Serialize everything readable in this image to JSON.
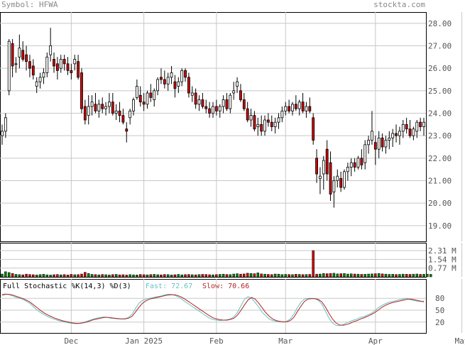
{
  "header": {
    "symbol": "Symbol: HFWA",
    "brand": "stockta.com"
  },
  "indicator": {
    "title": "Full Stochastic %K(14,3) %D(3)",
    "fast_label": "Fast: 72.67",
    "slow_label": "Slow: 70.66"
  },
  "colors": {
    "up": "#ffffff",
    "down": "#cc0000",
    "volume_up": "#008000",
    "volume_down": "#cc0000",
    "fast_line": "#66c2c2",
    "slow_line": "#b22222",
    "grid": "#c8c8c8",
    "label": "#555555",
    "fast_text": "#66c2c2",
    "slow_text": "#b22222"
  },
  "chart_data": [
    {
      "type": "candlestick",
      "title": "",
      "y_ticks": [
        "19.00",
        "20.00",
        "21.00",
        "22.00",
        "23.00",
        "24.00",
        "25.00",
        "26.00",
        "27.00",
        "28.00"
      ],
      "ylim": [
        18.3,
        28.5
      ],
      "x_ticks": [
        {
          "label": "Dec",
          "index": 20
        },
        {
          "label": "Jan 2025",
          "index": 41
        },
        {
          "label": "Feb",
          "index": 62
        },
        {
          "label": "Mar",
          "index": 82
        },
        {
          "label": "Apr",
          "index": 108
        },
        {
          "label": "May",
          "index": 133
        }
      ],
      "grid": true,
      "candles": [
        [
          23.0,
          23.5,
          22.6,
          23.2
        ],
        [
          23.2,
          24.0,
          22.9,
          23.8
        ],
        [
          25.0,
          27.3,
          24.8,
          27.2
        ],
        [
          27.1,
          27.3,
          25.6,
          26.1
        ],
        [
          26.2,
          26.5,
          25.8,
          26.2
        ],
        [
          26.5,
          27.5,
          26.0,
          26.9
        ],
        [
          26.8,
          27.2,
          26.3,
          26.4
        ],
        [
          26.6,
          27.0,
          25.9,
          26.3
        ],
        [
          26.3,
          26.6,
          25.6,
          26.0
        ],
        [
          26.1,
          26.4,
          25.5,
          25.7
        ],
        [
          25.2,
          25.6,
          24.9,
          25.4
        ],
        [
          25.4,
          25.8,
          25.1,
          25.6
        ],
        [
          25.6,
          26.0,
          25.3,
          25.8
        ],
        [
          25.8,
          26.7,
          25.6,
          26.5
        ],
        [
          26.6,
          27.8,
          26.3,
          27.0
        ],
        [
          26.4,
          26.7,
          25.8,
          26.1
        ],
        [
          26.2,
          26.5,
          25.5,
          25.9
        ],
        [
          26.0,
          26.6,
          25.8,
          26.4
        ],
        [
          26.4,
          26.6,
          25.9,
          26.2
        ],
        [
          26.2,
          26.5,
          25.7,
          25.9
        ],
        [
          25.9,
          26.2,
          25.5,
          25.8
        ],
        [
          26.2,
          26.6,
          25.9,
          26.4
        ],
        [
          26.3,
          26.6,
          25.5,
          25.6
        ],
        [
          25.8,
          26.0,
          24.0,
          24.2
        ],
        [
          24.3,
          24.6,
          23.5,
          23.7
        ],
        [
          23.9,
          24.8,
          23.5,
          24.3
        ],
        [
          24.3,
          24.8,
          23.9,
          24.5
        ],
        [
          24.4,
          24.9,
          24.0,
          24.1
        ],
        [
          24.1,
          24.6,
          23.8,
          24.4
        ],
        [
          24.4,
          24.7,
          24.0,
          24.2
        ],
        [
          24.2,
          24.5,
          23.9,
          24.3
        ],
        [
          24.3,
          24.9,
          24.0,
          24.5
        ],
        [
          24.5,
          24.9,
          23.9,
          24.0
        ],
        [
          24.0,
          24.4,
          23.7,
          24.1
        ],
        [
          24.1,
          24.5,
          23.6,
          23.9
        ],
        [
          23.9,
          24.2,
          23.5,
          23.6
        ],
        [
          23.3,
          23.6,
          22.7,
          23.2
        ],
        [
          23.8,
          24.2,
          23.5,
          24.1
        ],
        [
          24.1,
          24.7,
          23.9,
          24.6
        ],
        [
          24.7,
          25.5,
          24.6,
          25.2
        ],
        [
          24.8,
          25.2,
          24.3,
          24.5
        ],
        [
          24.5,
          24.9,
          24.1,
          24.4
        ],
        [
          24.4,
          25.0,
          24.2,
          24.9
        ],
        [
          24.9,
          25.3,
          24.5,
          24.7
        ],
        [
          24.6,
          25.1,
          24.3,
          25.0
        ],
        [
          25.0,
          25.6,
          24.8,
          25.5
        ],
        [
          25.6,
          26.0,
          25.3,
          25.5
        ],
        [
          25.5,
          25.9,
          25.1,
          25.3
        ],
        [
          25.3,
          25.8,
          25.0,
          25.6
        ],
        [
          25.6,
          26.1,
          25.3,
          25.8
        ],
        [
          25.4,
          25.7,
          24.7,
          25.1
        ],
        [
          25.2,
          25.6,
          24.9,
          25.4
        ],
        [
          25.4,
          26.0,
          25.2,
          25.9
        ],
        [
          25.9,
          26.0,
          25.4,
          25.6
        ],
        [
          25.6,
          25.8,
          24.7,
          24.9
        ],
        [
          24.8,
          25.2,
          24.5,
          24.9
        ],
        [
          24.9,
          25.1,
          24.2,
          24.4
        ],
        [
          24.4,
          24.8,
          24.1,
          24.6
        ],
        [
          24.6,
          24.9,
          24.2,
          24.3
        ],
        [
          24.3,
          24.6,
          24.0,
          24.2
        ],
        [
          24.2,
          24.5,
          23.8,
          24.0
        ],
        [
          24.0,
          24.5,
          23.8,
          24.3
        ],
        [
          24.3,
          24.6,
          23.9,
          24.1
        ],
        [
          24.1,
          24.4,
          23.8,
          24.3
        ],
        [
          24.3,
          24.8,
          24.0,
          24.6
        ],
        [
          24.6,
          24.9,
          24.1,
          24.2
        ],
        [
          24.2,
          24.9,
          24.0,
          24.8
        ],
        [
          24.9,
          25.4,
          24.6,
          25.0
        ],
        [
          25.2,
          25.6,
          24.9,
          25.4
        ],
        [
          25.0,
          25.3,
          24.5,
          24.6
        ],
        [
          24.6,
          24.9,
          24.1,
          24.2
        ],
        [
          24.2,
          24.5,
          23.6,
          23.7
        ],
        [
          23.7,
          24.2,
          23.4,
          23.9
        ],
        [
          23.9,
          24.1,
          23.2,
          23.3
        ],
        [
          23.4,
          23.8,
          23.0,
          23.5
        ],
        [
          23.5,
          23.9,
          23.0,
          23.2
        ],
        [
          23.2,
          23.9,
          23.0,
          23.7
        ],
        [
          23.7,
          24.0,
          23.4,
          23.6
        ],
        [
          23.6,
          23.9,
          23.2,
          23.4
        ],
        [
          23.4,
          23.8,
          23.1,
          23.6
        ],
        [
          23.6,
          24.0,
          23.3,
          23.8
        ],
        [
          23.8,
          24.3,
          23.6,
          24.1
        ],
        [
          24.1,
          24.5,
          23.9,
          24.3
        ],
        [
          24.3,
          24.6,
          24.0,
          24.1
        ],
        [
          24.1,
          24.5,
          23.9,
          24.4
        ],
        [
          24.4,
          24.8,
          24.1,
          24.2
        ],
        [
          24.2,
          24.6,
          23.9,
          24.5
        ],
        [
          24.5,
          24.9,
          24.0,
          24.1
        ],
        [
          24.1,
          24.5,
          23.8,
          24.3
        ],
        [
          24.3,
          24.7,
          24.0,
          24.1
        ],
        [
          23.8,
          24.0,
          22.6,
          22.8
        ],
        [
          22.0,
          22.4,
          20.9,
          21.3
        ],
        [
          21.1,
          21.6,
          20.4,
          21.2
        ],
        [
          21.3,
          22.1,
          20.6,
          21.9
        ],
        [
          22.4,
          22.8,
          21.0,
          21.3
        ],
        [
          21.8,
          22.3,
          20.1,
          20.4
        ],
        [
          20.5,
          21.2,
          19.8,
          21.0
        ],
        [
          21.0,
          21.5,
          20.7,
          21.2
        ],
        [
          21.1,
          21.4,
          20.5,
          20.7
        ],
        [
          20.7,
          21.5,
          20.6,
          21.4
        ],
        [
          21.4,
          21.8,
          21.0,
          21.6
        ],
        [
          21.6,
          22.0,
          21.2,
          21.8
        ],
        [
          21.8,
          22.0,
          21.4,
          21.6
        ],
        [
          21.6,
          22.1,
          21.5,
          22.0
        ],
        [
          22.0,
          22.4,
          21.5,
          21.7
        ],
        [
          21.8,
          22.8,
          21.5,
          22.6
        ],
        [
          22.6,
          23.0,
          22.2,
          22.8
        ],
        [
          22.8,
          24.1,
          22.6,
          23.2
        ],
        [
          22.7,
          23.0,
          21.7,
          22.4
        ],
        [
          22.4,
          23.2,
          22.0,
          22.9
        ],
        [
          22.9,
          23.1,
          22.3,
          22.5
        ],
        [
          22.5,
          23.0,
          22.2,
          22.8
        ],
        [
          22.8,
          23.2,
          22.4,
          22.9
        ],
        [
          22.9,
          23.3,
          22.5,
          23.1
        ],
        [
          23.1,
          23.5,
          22.7,
          23.0
        ],
        [
          23.0,
          23.4,
          22.6,
          23.2
        ],
        [
          23.2,
          23.7,
          22.9,
          23.5
        ],
        [
          23.5,
          23.8,
          23.1,
          23.3
        ],
        [
          23.3,
          23.7,
          22.9,
          23.0
        ],
        [
          23.0,
          23.4,
          22.8,
          23.3
        ],
        [
          23.2,
          23.7,
          22.9,
          23.6
        ],
        [
          23.6,
          23.8,
          23.2,
          23.4
        ],
        [
          23.4,
          23.8,
          23.0,
          23.6
        ]
      ]
    },
    {
      "type": "bar",
      "title": "",
      "y_ticks": [
        "2.31 M",
        "1.54 M",
        "0.77 M"
      ],
      "ylim": [
        0,
        3.0
      ],
      "values": [
        0.25,
        0.45,
        0.38,
        0.3,
        0.22,
        0.2,
        0.18,
        0.24,
        0.21,
        0.19,
        0.17,
        0.2,
        0.23,
        0.18,
        0.16,
        0.19,
        0.21,
        0.18,
        0.2,
        0.17,
        0.22,
        0.19,
        0.2,
        0.25,
        0.4,
        0.3,
        0.22,
        0.2,
        0.18,
        0.21,
        0.19,
        0.17,
        0.2,
        0.22,
        0.18,
        0.19,
        0.16,
        0.2,
        0.18,
        0.17,
        0.21,
        0.19,
        0.18,
        0.2,
        0.22,
        0.19,
        0.18,
        0.21,
        0.2,
        0.17,
        0.19,
        0.22,
        0.18,
        0.2,
        0.21,
        0.19,
        0.18,
        0.2,
        0.22,
        0.21,
        0.19,
        0.18,
        0.2,
        0.22,
        0.24,
        0.21,
        0.2,
        0.25,
        0.28,
        0.24,
        0.26,
        0.32,
        0.3,
        0.28,
        0.35,
        0.26,
        0.24,
        0.22,
        0.2,
        0.25,
        0.24,
        0.2,
        0.22,
        0.21,
        0.2,
        0.23,
        0.22,
        0.2,
        0.21,
        0.22,
        2.31,
        0.24,
        0.25,
        0.3,
        0.28,
        0.3,
        0.32,
        0.26,
        0.28,
        0.3,
        0.25,
        0.27,
        0.25,
        0.24,
        0.22,
        0.23,
        0.25,
        0.26,
        0.28,
        0.3,
        0.26,
        0.24,
        0.22,
        0.23,
        0.21,
        0.22,
        0.24,
        0.23,
        0.22,
        0.24,
        0.25,
        0.22,
        0.23,
        0.24,
        0.22
      ],
      "highlight": [
        {
          "index": 1,
          "value": 0.45
        },
        {
          "index": 24,
          "value": 0.4
        }
      ]
    },
    {
      "type": "line",
      "title": "Full Stochastic %K(14,3) %D(3)",
      "y_ticks": [
        "80",
        "50",
        "20"
      ],
      "ylim": [
        0,
        100
      ],
      "series": [
        {
          "name": "Fast",
          "values": [
            90,
            91,
            89,
            86,
            82,
            80,
            77,
            72,
            66,
            58,
            50,
            44,
            39,
            34,
            30,
            27,
            24,
            22,
            20,
            18,
            17,
            16,
            17,
            19,
            22,
            25,
            28,
            30,
            32,
            33,
            32,
            30,
            29,
            28,
            28,
            29,
            32,
            40,
            55,
            68,
            75,
            78,
            80,
            82,
            84,
            85,
            88,
            90,
            90,
            88,
            84,
            79,
            72,
            66,
            60,
            54,
            48,
            42,
            36,
            30,
            27,
            25,
            24,
            25,
            26,
            28,
            34,
            45,
            62,
            78,
            84,
            80,
            70,
            58,
            45,
            36,
            28,
            24,
            22,
            21,
            20,
            22,
            28,
            40,
            56,
            70,
            78,
            80,
            80,
            79,
            75,
            65,
            48,
            30,
            18,
            12,
            11,
            14,
            18,
            22,
            25,
            28,
            32,
            34,
            38,
            42,
            48,
            56,
            62,
            66,
            70,
            72,
            74,
            76,
            78,
            80,
            77,
            75,
            73,
            72,
            73
          ]
        },
        {
          "name": "Slow",
          "values": [
            88,
            90,
            90,
            88,
            85,
            82,
            79,
            75,
            70,
            63,
            56,
            49,
            43,
            38,
            34,
            30,
            27,
            24,
            22,
            20,
            18,
            17,
            17,
            18,
            20,
            23,
            26,
            28,
            30,
            32,
            32,
            31,
            30,
            29,
            28,
            28,
            30,
            35,
            46,
            58,
            68,
            74,
            78,
            80,
            82,
            84,
            86,
            88,
            89,
            89,
            87,
            83,
            78,
            72,
            66,
            60,
            54,
            48,
            42,
            36,
            31,
            28,
            26,
            25,
            25,
            27,
            30,
            38,
            50,
            64,
            76,
            82,
            78,
            68,
            56,
            44,
            35,
            28,
            24,
            22,
            21,
            21,
            24,
            32,
            46,
            60,
            72,
            78,
            79,
            79,
            77,
            71,
            58,
            42,
            28,
            18,
            13,
            12,
            14,
            17,
            21,
            24,
            28,
            31,
            35,
            39,
            44,
            50,
            57,
            62,
            66,
            69,
            71,
            73,
            75,
            77,
            78,
            77,
            75,
            73,
            71
          ]
        }
      ]
    }
  ]
}
